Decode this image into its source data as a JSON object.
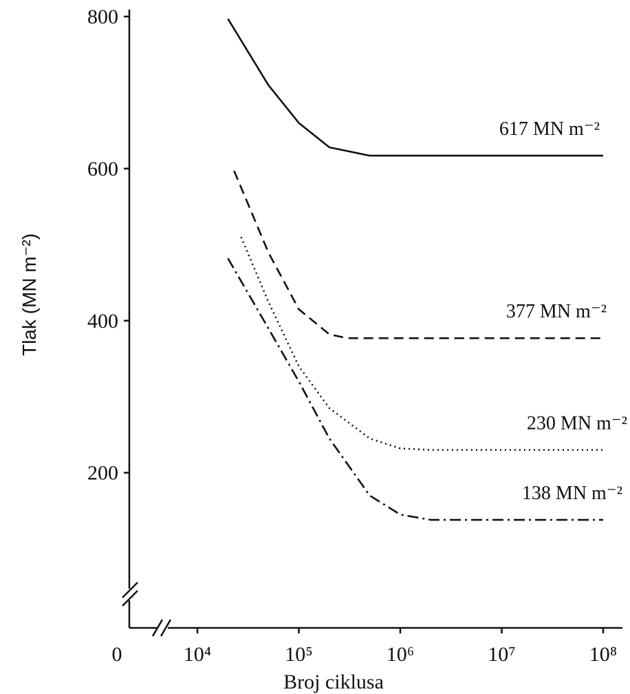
{
  "chart_data": {
    "type": "line",
    "title": "",
    "xlabel": "Broj ciklusa",
    "ylabel": "Tlak (MN m⁻²)",
    "x_scale": "log",
    "x_ticks": [
      {
        "value": 0,
        "label": "0"
      },
      {
        "value": 10000,
        "label": "10⁴"
      },
      {
        "value": 100000,
        "label": "10⁵"
      },
      {
        "value": 1000000,
        "label": "10⁶"
      },
      {
        "value": 10000000,
        "label": "10⁷"
      },
      {
        "value": 100000000,
        "label": "10⁸"
      }
    ],
    "y_ticks": [
      {
        "value": 200,
        "label": "200"
      },
      {
        "value": 400,
        "label": "400"
      },
      {
        "value": 600,
        "label": "600"
      },
      {
        "value": 800,
        "label": "800"
      }
    ],
    "ylim": [
      0,
      800
    ],
    "xlim": [
      10000,
      100000000
    ],
    "axis_breaks": true,
    "grid": false,
    "series": [
      {
        "name": "617 MN m⁻²",
        "line_style": "solid",
        "points": [
          [
            20000,
            797
          ],
          [
            50000,
            710
          ],
          [
            100000,
            660
          ],
          [
            200000,
            628
          ],
          [
            500000,
            617
          ],
          [
            100000000,
            617
          ]
        ]
      },
      {
        "name": "377 MN m⁻²",
        "line_style": "dashed",
        "points": [
          [
            23000,
            597
          ],
          [
            50000,
            490
          ],
          [
            100000,
            415
          ],
          [
            200000,
            382
          ],
          [
            300000,
            377
          ],
          [
            100000000,
            377
          ]
        ]
      },
      {
        "name": "230 MN m⁻²",
        "line_style": "dotted",
        "points": [
          [
            27000,
            510
          ],
          [
            50000,
            425
          ],
          [
            100000,
            340
          ],
          [
            200000,
            285
          ],
          [
            500000,
            245
          ],
          [
            1000000,
            232
          ],
          [
            2000000,
            230
          ],
          [
            100000000,
            230
          ]
        ]
      },
      {
        "name": "138 MN m⁻²",
        "line_style": "dash-dot",
        "points": [
          [
            20000,
            482
          ],
          [
            50000,
            390
          ],
          [
            100000,
            320
          ],
          [
            200000,
            245
          ],
          [
            500000,
            170
          ],
          [
            1000000,
            145
          ],
          [
            2000000,
            138
          ],
          [
            100000000,
            138
          ]
        ]
      }
    ]
  }
}
